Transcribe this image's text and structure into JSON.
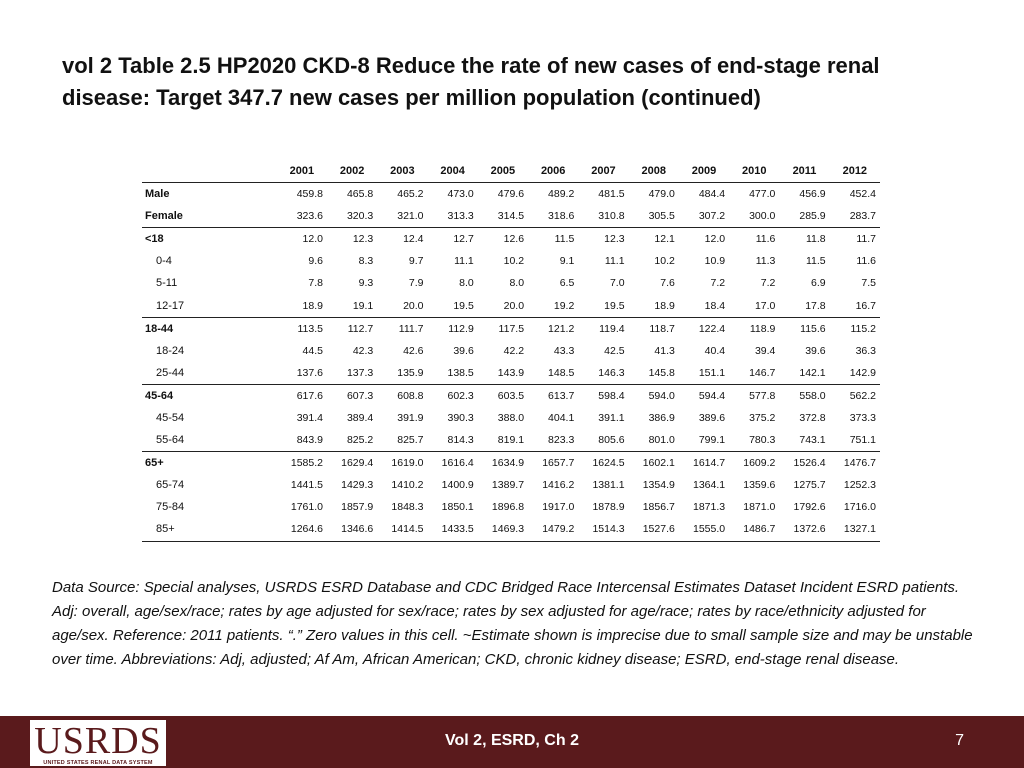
{
  "title": "vol 2 Table 2.5  HP2020 CKD-8 Reduce the rate of new cases of end-stage renal disease: Target 347.7 new cases per million population (continued)",
  "table": {
    "years": [
      "2001",
      "2002",
      "2003",
      "2004",
      "2005",
      "2006",
      "2007",
      "2008",
      "2009",
      "2010",
      "2011",
      "2012"
    ],
    "rows": [
      {
        "label": "Male",
        "kind": "grp",
        "values": [
          "459.8",
          "465.8",
          "465.2",
          "473.0",
          "479.6",
          "489.2",
          "481.5",
          "479.0",
          "484.4",
          "477.0",
          "456.9",
          "452.4"
        ]
      },
      {
        "label": "Female",
        "kind": "grp",
        "values": [
          "323.6",
          "320.3",
          "321.0",
          "313.3",
          "314.5",
          "318.6",
          "310.8",
          "305.5",
          "307.2",
          "300.0",
          "285.9",
          "283.7"
        ]
      },
      {
        "label": "<18",
        "kind": "grp",
        "topline": true,
        "values": [
          "12.0",
          "12.3",
          "12.4",
          "12.7",
          "12.6",
          "11.5",
          "12.3",
          "12.1",
          "12.0",
          "11.6",
          "11.8",
          "11.7"
        ]
      },
      {
        "label": "0-4",
        "kind": "sub",
        "values": [
          "9.6",
          "8.3",
          "9.7",
          "11.1",
          "10.2",
          "9.1",
          "11.1",
          "10.2",
          "10.9",
          "11.3",
          "11.5",
          "11.6"
        ]
      },
      {
        "label": "5-11",
        "kind": "sub",
        "values": [
          "7.8",
          "9.3",
          "7.9",
          "8.0",
          "8.0",
          "6.5",
          "7.0",
          "7.6",
          "7.2",
          "7.2",
          "6.9",
          "7.5"
        ]
      },
      {
        "label": "12-17",
        "kind": "sub",
        "values": [
          "18.9",
          "19.1",
          "20.0",
          "19.5",
          "20.0",
          "19.2",
          "19.5",
          "18.9",
          "18.4",
          "17.0",
          "17.8",
          "16.7"
        ]
      },
      {
        "label": "18-44",
        "kind": "grp",
        "topline": true,
        "values": [
          "113.5",
          "112.7",
          "111.7",
          "112.9",
          "117.5",
          "121.2",
          "119.4",
          "118.7",
          "122.4",
          "118.9",
          "115.6",
          "115.2"
        ]
      },
      {
        "label": "18-24",
        "kind": "sub",
        "values": [
          "44.5",
          "42.3",
          "42.6",
          "39.6",
          "42.2",
          "43.3",
          "42.5",
          "41.3",
          "40.4",
          "39.4",
          "39.6",
          "36.3"
        ]
      },
      {
        "label": "25-44",
        "kind": "sub",
        "values": [
          "137.6",
          "137.3",
          "135.9",
          "138.5",
          "143.9",
          "148.5",
          "146.3",
          "145.8",
          "151.1",
          "146.7",
          "142.1",
          "142.9"
        ]
      },
      {
        "label": "45-64",
        "kind": "grp",
        "topline": true,
        "values": [
          "617.6",
          "607.3",
          "608.8",
          "602.3",
          "603.5",
          "613.7",
          "598.4",
          "594.0",
          "594.4",
          "577.8",
          "558.0",
          "562.2"
        ]
      },
      {
        "label": "45-54",
        "kind": "sub",
        "values": [
          "391.4",
          "389.4",
          "391.9",
          "390.3",
          "388.0",
          "404.1",
          "391.1",
          "386.9",
          "389.6",
          "375.2",
          "372.8",
          "373.3"
        ]
      },
      {
        "label": "55-64",
        "kind": "sub",
        "values": [
          "843.9",
          "825.2",
          "825.7",
          "814.3",
          "819.1",
          "823.3",
          "805.6",
          "801.0",
          "799.1",
          "780.3",
          "743.1",
          "751.1"
        ]
      },
      {
        "label": "65+",
        "kind": "grp",
        "topline": true,
        "values": [
          "1585.2",
          "1629.4",
          "1619.0",
          "1616.4",
          "1634.9",
          "1657.7",
          "1624.5",
          "1602.1",
          "1614.7",
          "1609.2",
          "1526.4",
          "1476.7"
        ]
      },
      {
        "label": "65-74",
        "kind": "sub",
        "values": [
          "1441.5",
          "1429.3",
          "1410.2",
          "1400.9",
          "1389.7",
          "1416.2",
          "1381.1",
          "1354.9",
          "1364.1",
          "1359.6",
          "1275.7",
          "1252.3"
        ]
      },
      {
        "label": "75-84",
        "kind": "sub",
        "values": [
          "1761.0",
          "1857.9",
          "1848.3",
          "1850.1",
          "1896.8",
          "1917.0",
          "1878.9",
          "1856.7",
          "1871.3",
          "1871.0",
          "1792.6",
          "1716.0"
        ]
      },
      {
        "label": "85+",
        "kind": "sub",
        "last": true,
        "values": [
          "1264.6",
          "1346.6",
          "1414.5",
          "1433.5",
          "1469.3",
          "1479.2",
          "1514.3",
          "1527.6",
          "1555.0",
          "1486.7",
          "1372.6",
          "1327.1"
        ]
      }
    ]
  },
  "source_note": "Data Source: Special analyses, USRDS ESRD Database and CDC Bridged Race Intercensal Estimates Dataset Incident ESRD patients. Adj: overall, age/sex/race; rates by age adjusted for sex/race; rates by sex adjusted for age/race; rates by race/ethnicity adjusted for age/sex. Reference: 2011 patients. “.” Zero values in this cell. ~Estimate shown is imprecise due to small sample size and may be unstable over time. Abbreviations: Adj, adjusted; Af Am, African American; CKD, chronic kidney disease; ESRD, end-stage renal disease.",
  "footer": {
    "logo_text": "USRDS",
    "logo_subtext": "UNITED STATES RENAL DATA SYSTEM",
    "center": "Vol 2, ESRD, Ch 2",
    "page_number": "7"
  },
  "colors": {
    "footer_bg": "#5a1a1c",
    "text": "#111111"
  }
}
